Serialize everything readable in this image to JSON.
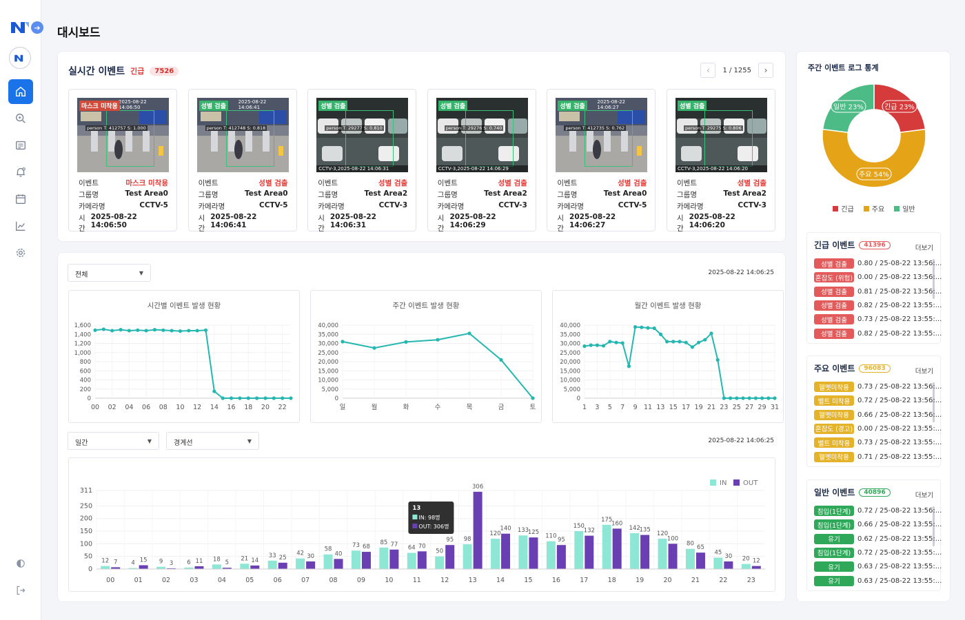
{
  "page_title": "대시보드",
  "realtime": {
    "title": "실시간 이벤트",
    "urgent_label": "긴급",
    "urgent_count": "7526",
    "pager": "1 / 1255",
    "labels": {
      "event": "이벤트",
      "group": "그룹명",
      "camera": "카메라명",
      "time": "시간"
    },
    "events": [
      {
        "tag": "마스크 미착용",
        "tag_color": "#d14a3a",
        "caption_top": "2025-08-22 14:06:50",
        "detect": "person T: 412757  S: 1.000",
        "caption": "",
        "event": "마스크 미착용",
        "group": "Test Area0",
        "camera": "CCTV-5",
        "time": "2025-08-22 14:06:50",
        "scene": "station"
      },
      {
        "tag": "성별 검출",
        "tag_color": "#35b36b",
        "caption_top": "2025-08-22 14:06:41",
        "detect": "person T: 412748  S: 0.818",
        "caption": "",
        "event": "성별 검출",
        "group": "Test Area0",
        "camera": "CCTV-5",
        "time": "2025-08-22 14:06:41",
        "scene": "station"
      },
      {
        "tag": "성별 검출",
        "tag_color": "#35b36b",
        "caption_top": "",
        "detect": "person T: 29277  S: 0.810",
        "caption": "CCTV-3,2025-08-22 14:06:31",
        "event": "성별 검출",
        "group": "Test Area2",
        "camera": "CCTV-3",
        "time": "2025-08-22 14:06:31",
        "scene": "parking"
      },
      {
        "tag": "성별 검출",
        "tag_color": "#35b36b",
        "caption_top": "",
        "detect": "person T: 29276  S: 0.740",
        "caption": "CCTV-3,2025-08-22 14:06:29",
        "event": "성별 검출",
        "group": "Test Area2",
        "camera": "CCTV-3",
        "time": "2025-08-22 14:06:29",
        "scene": "parking"
      },
      {
        "tag": "성별 검출",
        "tag_color": "#35b36b",
        "caption_top": "2025-08-22 14:06:27",
        "detect": "person T: 412735  S: 0.762",
        "caption": "",
        "event": "성별 검출",
        "group": "Test Area0",
        "camera": "CCTV-5",
        "time": "2025-08-22 14:06:27",
        "scene": "station"
      },
      {
        "tag": "성별 검출",
        "tag_color": "#35b36b",
        "caption_top": "",
        "detect": "person T: 29275  S: 0.806",
        "caption": "CCTV-3,2025-08-22 14:06:20",
        "event": "성별 검출",
        "group": "Test Area2",
        "camera": "CCTV-3",
        "time": "2025-08-22 14:06:20",
        "scene": "parking"
      }
    ]
  },
  "filters": {
    "all_select": "전체",
    "timestamp1": "2025-08-22 14:06:25",
    "period_select": "일간",
    "type_select": "경계선",
    "timestamp2": "2025-08-22 14:06:25"
  },
  "weekly_stats": {
    "title": "주간 이벤트 로그 통계",
    "legend": [
      {
        "label": "긴급",
        "color": "#d63b3b"
      },
      {
        "label": "주요",
        "color": "#e5a318"
      },
      {
        "label": "일반",
        "color": "#4cbb85"
      }
    ]
  },
  "side_panels": [
    {
      "title": "긴급 이벤트",
      "count": "41396",
      "more": "더보기",
      "color": "#e35a5a",
      "items": [
        {
          "tag": "성별 검출",
          "text": "0.80 / 25-08-22 13:56:..."
        },
        {
          "tag": "혼잡도 (위험)",
          "text": "0.00 / 25-08-22 13:56:..."
        },
        {
          "tag": "성별 검출",
          "text": "0.81 / 25-08-22 13:56:..."
        },
        {
          "tag": "성별 검출",
          "text": "0.82 / 25-08-22 13:55:..."
        },
        {
          "tag": "성별 검출",
          "text": "0.73 / 25-08-22 13:55:..."
        },
        {
          "tag": "성별 검출",
          "text": "0.82 / 25-08-22 13:55:..."
        }
      ]
    },
    {
      "title": "주요 이벤트",
      "count": "96083",
      "more": "더보기",
      "color": "#e5b32a",
      "items": [
        {
          "tag": "헬멧미착용",
          "text": "0.73 / 25-08-22 13:56:..."
        },
        {
          "tag": "벨트 미착용",
          "text": "0.72 / 25-08-22 13:56:..."
        },
        {
          "tag": "헬멧미착용",
          "text": "0.66 / 25-08-22 13:56:..."
        },
        {
          "tag": "혼잡도 (경고)",
          "text": "0.00 / 25-08-22 13:55:..."
        },
        {
          "tag": "벨트 미착용",
          "text": "0.73 / 25-08-22 13:55:..."
        },
        {
          "tag": "헬멧미착용",
          "text": "0.71 / 25-08-22 13:55:..."
        }
      ]
    },
    {
      "title": "일반 이벤트",
      "count": "40896",
      "more": "더보기",
      "color": "#2fa85a",
      "items": [
        {
          "tag": "침입(1단계)",
          "text": "0.72 / 25-08-22 13:56:..."
        },
        {
          "tag": "침입(1단계)",
          "text": "0.66 / 25-08-22 13:55:..."
        },
        {
          "tag": "유기",
          "text": "0.62 / 25-08-22 13:55:..."
        },
        {
          "tag": "침입(1단계)",
          "text": "0.72 / 25-08-22 13:55:..."
        },
        {
          "tag": "유기",
          "text": "0.63 / 25-08-22 13:55:..."
        },
        {
          "tag": "유기",
          "text": "0.63 / 25-08-22 13:55:..."
        }
      ]
    }
  ],
  "chart_data": [
    {
      "type": "pie",
      "title": "주간 이벤트 로그 통계",
      "categories": [
        "긴급",
        "주요",
        "일반"
      ],
      "values": [
        23,
        54,
        23
      ],
      "labels": [
        "긴급 23%",
        "주요 54%",
        "일반 23%"
      ],
      "colors": [
        "#d63b3b",
        "#e5a318",
        "#4cbb85"
      ]
    },
    {
      "type": "line",
      "title": "시간별 이벤트 발생 현황",
      "x": [
        "00",
        "01",
        "02",
        "03",
        "04",
        "05",
        "06",
        "07",
        "08",
        "09",
        "10",
        "11",
        "12",
        "13",
        "14",
        "15",
        "16",
        "17",
        "18",
        "19",
        "20",
        "21",
        "22",
        "23"
      ],
      "xticks": [
        "00",
        "02",
        "04",
        "06",
        "08",
        "10",
        "12",
        "14",
        "16",
        "18",
        "20",
        "22"
      ],
      "values": [
        1490,
        1510,
        1480,
        1500,
        1480,
        1490,
        1480,
        1500,
        1490,
        1480,
        1470,
        1480,
        1480,
        1490,
        150,
        0,
        0,
        0,
        0,
        0,
        0,
        0,
        0,
        0
      ],
      "yticks": [
        "0",
        "200",
        "400",
        "600",
        "800",
        "1,000",
        "1,200",
        "1,400",
        "1,600"
      ],
      "ylim": [
        0,
        1600
      ]
    },
    {
      "type": "line",
      "title": "주간 이벤트 발생 현황",
      "x": [
        "일",
        "월",
        "화",
        "수",
        "목",
        "금",
        "토"
      ],
      "xticks": [
        "일",
        "월",
        "화",
        "수",
        "목",
        "금",
        "토"
      ],
      "values": [
        31000,
        27500,
        30800,
        32000,
        35500,
        21000,
        0
      ],
      "yticks": [
        "0",
        "5,000",
        "10,000",
        "15,000",
        "20,000",
        "25,000",
        "30,000",
        "35,000",
        "40,000"
      ],
      "ylim": [
        0,
        40000
      ]
    },
    {
      "type": "line",
      "title": "월간 이벤트 발생 현황",
      "x": [
        "1",
        "2",
        "3",
        "4",
        "5",
        "6",
        "7",
        "8",
        "9",
        "10",
        "11",
        "12",
        "13",
        "14",
        "15",
        "16",
        "17",
        "18",
        "19",
        "20",
        "21",
        "22",
        "23",
        "24",
        "25",
        "26",
        "27",
        "28",
        "29",
        "30",
        "31"
      ],
      "xticks": [
        "1",
        "3",
        "5",
        "7",
        "9",
        "11",
        "13",
        "15",
        "17",
        "19",
        "21",
        "23",
        "25",
        "27",
        "29",
        "31"
      ],
      "values": [
        28500,
        29000,
        29000,
        28700,
        31000,
        30500,
        30200,
        17500,
        39000,
        38800,
        38500,
        38300,
        35000,
        31000,
        31000,
        31000,
        30500,
        28000,
        30500,
        32000,
        35500,
        21000,
        0,
        0,
        0,
        0,
        0,
        0,
        0,
        0,
        0
      ],
      "yticks": [
        "0",
        "5,000",
        "10,000",
        "15,000",
        "20,000",
        "25,000",
        "30,000",
        "35,000",
        "40,000"
      ],
      "ylim": [
        0,
        40000
      ]
    },
    {
      "type": "bar",
      "categories": [
        "00",
        "01",
        "02",
        "03",
        "04",
        "05",
        "06",
        "07",
        "08",
        "09",
        "10",
        "11",
        "12",
        "13",
        "14",
        "15",
        "16",
        "17",
        "18",
        "19",
        "20",
        "21",
        "22",
        "23"
      ],
      "series": [
        {
          "name": "IN",
          "color": "#8ee6d5",
          "values": [
            12,
            4,
            9,
            6,
            18,
            21,
            33,
            42,
            58,
            73,
            85,
            64,
            50,
            98,
            120,
            133,
            110,
            150,
            175,
            142,
            120,
            80,
            45,
            20
          ]
        },
        {
          "name": "OUT",
          "color": "#6a3fb3",
          "values": [
            7,
            15,
            3,
            11,
            5,
            14,
            25,
            30,
            40,
            68,
            77,
            70,
            95,
            306,
            140,
            125,
            95,
            132,
            160,
            135,
            100,
            65,
            30,
            12
          ]
        }
      ],
      "yticks": [
        "0",
        "50",
        "100",
        "150",
        "200",
        "250",
        "311"
      ],
      "ylim": [
        0,
        311
      ],
      "tooltip": {
        "title": "13",
        "in": "IN: 98명",
        "out": "OUT: 306명"
      }
    }
  ]
}
